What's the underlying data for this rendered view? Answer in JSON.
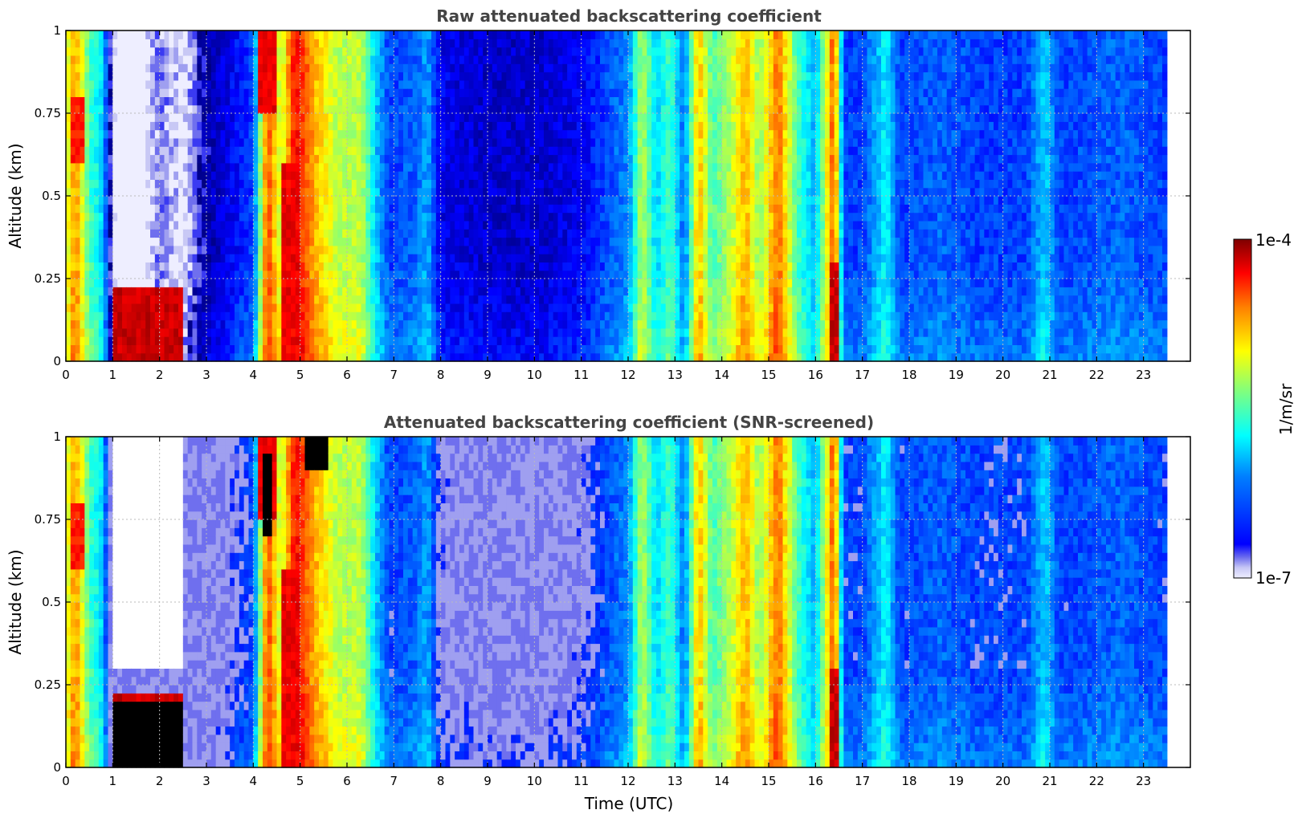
{
  "colors": {
    "jet": [
      "#00007f",
      "#0000ff",
      "#007fff",
      "#00ffff",
      "#7fff7f",
      "#ffff00",
      "#ff7f00",
      "#ff0000",
      "#7f0000"
    ],
    "low_shades": [
      "#eeeeff",
      "#c8c8f5",
      "#9f9ff0",
      "#6f6fee",
      "#3a3af2"
    ],
    "saturated": "#000000",
    "grid": "#bbbbbb"
  },
  "chart_data": [
    {
      "type": "heatmap",
      "title": "Raw attenuated backscattering coefficient",
      "xlabel": "",
      "ylabel": "Altitude (km)",
      "xlim": [
        0,
        24
      ],
      "ylim": [
        0,
        1
      ],
      "x_ticks": [
        0,
        1,
        2,
        3,
        4,
        5,
        6,
        7,
        8,
        9,
        10,
        11,
        12,
        13,
        14,
        15,
        16,
        17,
        18,
        19,
        20,
        21,
        22,
        23
      ],
      "x_tick_labels": [
        "0",
        "1",
        "2",
        "3",
        "4",
        "5",
        "6",
        "7",
        "8",
        "9",
        "10",
        "11",
        "12",
        "13",
        "14",
        "15",
        "16",
        "17",
        "18",
        "19",
        "20",
        "21",
        "22",
        "23"
      ],
      "y_ticks": [
        0,
        0.25,
        0.5,
        0.75,
        1
      ],
      "y_tick_labels": [
        "0",
        "0.25",
        "0.5",
        "0.75",
        "1"
      ],
      "grid": true,
      "data_time_range": [
        0,
        23.5
      ],
      "time_profile_log10": [
        [
          0,
          -5.2
        ],
        [
          0.2,
          -4.7
        ],
        [
          0.5,
          -5.5
        ],
        [
          0.8,
          -5.8
        ],
        [
          1.0,
          -7.0
        ],
        [
          1.5,
          -7.2
        ],
        [
          2.0,
          -6.8
        ],
        [
          2.5,
          -7.0
        ],
        [
          3.0,
          -6.6
        ],
        [
          3.5,
          -6.4
        ],
        [
          4.0,
          -6.2
        ],
        [
          4.3,
          -4.5
        ],
        [
          4.6,
          -5.2
        ],
        [
          4.9,
          -4.3
        ],
        [
          5.3,
          -4.8
        ],
        [
          5.8,
          -5.2
        ],
        [
          6.3,
          -5.2
        ],
        [
          6.6,
          -5.8
        ],
        [
          6.9,
          -6.2
        ],
        [
          7.5,
          -6.1
        ],
        [
          7.7,
          -5.9
        ],
        [
          8.0,
          -6.4
        ],
        [
          9.0,
          -6.5
        ],
        [
          10.0,
          -6.5
        ],
        [
          11.0,
          -6.4
        ],
        [
          11.5,
          -6.2
        ],
        [
          12.0,
          -6.0
        ],
        [
          12.3,
          -5.2
        ],
        [
          12.6,
          -5.8
        ],
        [
          12.9,
          -5.5
        ],
        [
          13.2,
          -6.1
        ],
        [
          13.5,
          -4.8
        ],
        [
          13.8,
          -5.5
        ],
        [
          14.2,
          -5.2
        ],
        [
          14.5,
          -4.8
        ],
        [
          14.8,
          -5.3
        ],
        [
          15.2,
          -4.6
        ],
        [
          15.6,
          -5.5
        ],
        [
          16.0,
          -5.9
        ],
        [
          16.4,
          -4.5
        ],
        [
          16.6,
          -6.2
        ],
        [
          17.0,
          -6.2
        ],
        [
          17.5,
          -5.7
        ],
        [
          17.8,
          -6.2
        ],
        [
          18.7,
          -6.1
        ],
        [
          19.5,
          -6.2
        ],
        [
          20.5,
          -6.2
        ],
        [
          20.9,
          -5.8
        ],
        [
          21.2,
          -6.2
        ],
        [
          22.5,
          -6.1
        ],
        [
          23.5,
          -6.2
        ]
      ],
      "features": [
        {
          "t": [
            1.0,
            2.5
          ],
          "alt": [
            0.0,
            0.22
          ],
          "log10": -4.2
        },
        {
          "t": [
            0.1,
            0.4
          ],
          "alt": [
            0.6,
            0.8
          ],
          "log10": -4.4
        },
        {
          "t": [
            4.1,
            4.5
          ],
          "alt": [
            0.75,
            1.0
          ],
          "log10": -4.3
        },
        {
          "t": [
            4.6,
            5.0
          ],
          "alt": [
            0.0,
            0.6
          ],
          "log10": -4.3
        },
        {
          "t": [
            16.3,
            16.5
          ],
          "alt": [
            0.0,
            0.3
          ],
          "log10": -4.2
        }
      ]
    },
    {
      "type": "heatmap",
      "title": "Attenuated backscattering coefficient (SNR-screened)",
      "xlabel": "Time (UTC)",
      "ylabel": "Altitude (km)",
      "xlim": [
        0,
        24
      ],
      "ylim": [
        0,
        1
      ],
      "x_ticks": [
        0,
        1,
        2,
        3,
        4,
        5,
        6,
        7,
        8,
        9,
        10,
        11,
        12,
        13,
        14,
        15,
        16,
        17,
        18,
        19,
        20,
        21,
        22,
        23
      ],
      "x_tick_labels": [
        "0",
        "1",
        "2",
        "3",
        "4",
        "5",
        "6",
        "7",
        "8",
        "9",
        "10",
        "11",
        "12",
        "13",
        "14",
        "15",
        "16",
        "17",
        "18",
        "19",
        "20",
        "21",
        "22",
        "23"
      ],
      "y_ticks": [
        0,
        0.25,
        0.5,
        0.75,
        1
      ],
      "y_tick_labels": [
        "0",
        "0.25",
        "0.5",
        "0.75",
        "1"
      ],
      "grid": true,
      "data_time_range": [
        0,
        23.5
      ],
      "screened_regions": [
        {
          "t": [
            1.0,
            2.5
          ],
          "alt": [
            0.3,
            1.0
          ]
        }
      ],
      "saturated_regions": [
        {
          "t": [
            1.0,
            2.5
          ],
          "alt": [
            0.0,
            0.2
          ]
        },
        {
          "t": [
            4.2,
            4.4
          ],
          "alt": [
            0.7,
            0.95
          ]
        },
        {
          "t": [
            5.1,
            5.6
          ],
          "alt": [
            0.9,
            1.0
          ]
        }
      ]
    }
  ],
  "colorbar": {
    "label": "1/m/sr",
    "min_label": "1e-7",
    "max_label": "1e-4",
    "range_log10": [
      -7,
      -4
    ],
    "scale": "log"
  }
}
